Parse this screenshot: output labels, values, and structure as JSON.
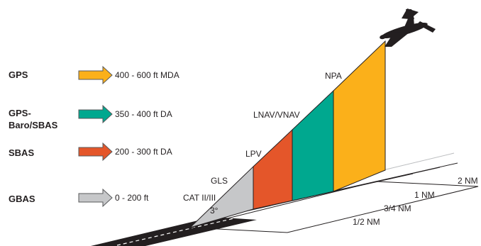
{
  "categories": [
    {
      "name": "GPS",
      "range": "400 - 600 ft MDA",
      "color": "#fbb01a"
    },
    {
      "name_line1": "GPS-",
      "name_line2": "Baro/SBAS",
      "range": "350 - 400 ft DA",
      "color": "#00a88f"
    },
    {
      "name": "SBAS",
      "range": "200 - 300 ft DA",
      "color": "#e4562a"
    },
    {
      "name": "GBAS",
      "range": "0 - 200 ft",
      "color": "#c6c7c9"
    }
  ],
  "approach_labels": {
    "npa": "NPA",
    "lnav_vnav": "LNAV/VNAV",
    "lpv": "LPV",
    "gls": "GLS",
    "cat": "CAT II/III",
    "angle": "3°"
  },
  "distances": {
    "d2": "2 NM",
    "d1": "1 NM",
    "d34": "3/4 NM",
    "d12": "1/2 NM"
  },
  "colors": {
    "outline": "#231f20",
    "runway": "#231f20",
    "runway_line": "#ffffff",
    "arrow_stroke": "#58595b"
  }
}
